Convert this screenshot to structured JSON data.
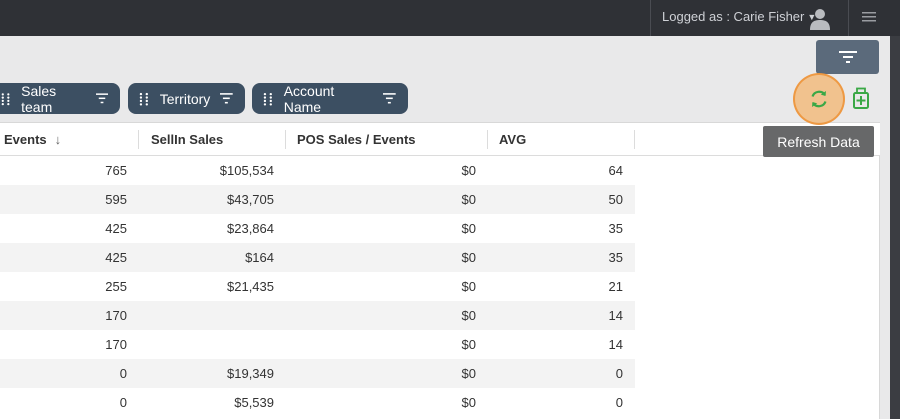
{
  "header": {
    "user_label": "Logged as : Carie Fisher",
    "icons": {
      "avatar": "user-avatar-icon",
      "menu": "hamburger-icon",
      "caret": "caret-down-icon"
    }
  },
  "toolbar": {
    "filter_icon": "filter-icon",
    "refresh_icon": "refresh-icon",
    "export_icon": "export-excel-icon",
    "tooltip": "Refresh Data"
  },
  "group_chips": [
    {
      "label": "Sales team"
    },
    {
      "label": "Territory"
    },
    {
      "label": "Account Name"
    }
  ],
  "table": {
    "columns": [
      {
        "label": "Events",
        "sort": "desc"
      },
      {
        "label": "SellIn Sales"
      },
      {
        "label": "POS Sales / Events"
      },
      {
        "label": "AVG"
      }
    ],
    "rows": [
      [
        "765",
        "$105,534",
        "$0",
        "64"
      ],
      [
        "595",
        "$43,705",
        "$0",
        "50"
      ],
      [
        "425",
        "$23,864",
        "$0",
        "35"
      ],
      [
        "425",
        "$164",
        "$0",
        "35"
      ],
      [
        "255",
        "$21,435",
        "$0",
        "21"
      ],
      [
        "170",
        "",
        "$0",
        "14"
      ],
      [
        "170",
        "",
        "$0",
        "14"
      ],
      [
        "0",
        "$19,349",
        "$0",
        "0"
      ],
      [
        "0",
        "$5,539",
        "$0",
        "0"
      ]
    ]
  },
  "colors": {
    "topbar": "#2f3136",
    "chip": "#3c4f62",
    "filter_button": "#5b6a7b",
    "highlight": "#f6ad5c",
    "export_green": "#3aa846"
  }
}
